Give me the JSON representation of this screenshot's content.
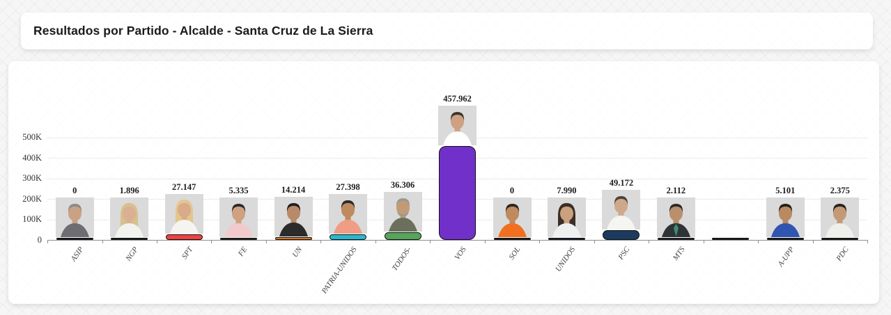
{
  "header": {
    "title": "Resultados por Partido - Alcalde - Santa Cruz de La Sierra"
  },
  "chart_data": {
    "type": "bar",
    "title": "Resultados por Partido - Alcalde - Santa Cruz de La Sierra",
    "xlabel": "",
    "ylabel": "",
    "ylim": [
      0,
      500000
    ],
    "ytick_labels": [
      "0",
      "100K",
      "200K",
      "300K",
      "400K",
      "500K"
    ],
    "grid": true,
    "legend": false,
    "xtick_rotation": -55,
    "categories": [
      "ASIP",
      "NGP",
      "SPT",
      "FE",
      "UN",
      "PATRIA-UNIDOS",
      "TODOS-",
      "VOS",
      "SOL",
      "UNIDOS",
      "PSC",
      "MTS",
      "",
      "A-UPP",
      "PDC"
    ],
    "values": [
      0,
      1896,
      27147,
      5335,
      14214,
      27398,
      36306,
      457962,
      0,
      7990,
      49172,
      2112,
      null,
      5101,
      2375
    ],
    "value_labels": [
      "0",
      "1.896",
      "27.147",
      "5.335",
      "14.214",
      "27.398",
      "36.306",
      "457.962",
      "0",
      "7.990",
      "49.172",
      "2.112",
      "",
      "5.101",
      "2.375"
    ],
    "bar_colors": [
      "#1f1f1f",
      "#1f1f1f",
      "#F04141",
      "#2b2b2b",
      "#D9781E",
      "#29B9CF",
      "#57A45B",
      "#7130C9",
      "#1f1f1f",
      "#21213d",
      "#1C3A5E",
      "#2b2b2b",
      "#1f1f1f",
      "#1f1f1f",
      "#1f1f1f"
    ],
    "photos": [
      {
        "skin": "#c9a284",
        "hair": "#8a8a8a",
        "shirt": "#6e6e72",
        "female": false,
        "beard": false,
        "tie": null
      },
      {
        "skin": "#d9b091",
        "hair": "#d8c08e",
        "shirt": "#f2f2ef",
        "female": true,
        "beard": false,
        "tie": null
      },
      {
        "skin": "#d9ab8a",
        "hair": "#e3c68f",
        "shirt": "#f5f4f0",
        "female": true,
        "beard": false,
        "tie": null
      },
      {
        "skin": "#cfa181",
        "hair": "#2a2a2a",
        "shirt": "#f2c9cd",
        "female": false,
        "beard": false,
        "tie": null
      },
      {
        "skin": "#b98a67",
        "hair": "#1f1f1f",
        "shirt": "#2b2b2b",
        "female": false,
        "beard": false,
        "tie": null
      },
      {
        "skin": "#c08a5f",
        "hair": "#2c2c2c",
        "shirt": "#f09d86",
        "female": false,
        "beard": false,
        "tie": null
      },
      {
        "skin": "#c49a76",
        "hair": "#9a9a94",
        "shirt": "#6b705c",
        "female": false,
        "beard": true,
        "tie": null
      },
      {
        "skin": "#cfa183",
        "hair": "#3c3430",
        "shirt": "#ffffff",
        "female": false,
        "beard": false,
        "tie": null
      },
      {
        "skin": "#c08a5f",
        "hair": "#2c2420",
        "shirt": "#f07020",
        "female": false,
        "beard": false,
        "tie": null
      },
      {
        "skin": "#caa07e",
        "hair": "#3a2e28",
        "shirt": "#eef0ef",
        "female": true,
        "beard": false,
        "tie": null
      },
      {
        "skin": "#cfa88a",
        "hair": "#4a443e",
        "shirt": "#f5f5f2",
        "female": false,
        "beard": false,
        "tie": null
      },
      {
        "skin": "#b9906b",
        "hair": "#2e2a26",
        "shirt": "#2e3338",
        "female": false,
        "beard": false,
        "tie": "#3f8f6f"
      },
      null,
      {
        "skin": "#b98a62",
        "hair": "#241f1b",
        "shirt": "#2f55b0",
        "female": false,
        "beard": false,
        "tie": null
      },
      {
        "skin": "#c49a76",
        "hair": "#2a241f",
        "shirt": "#efefec",
        "female": false,
        "beard": false,
        "tie": null
      }
    ]
  }
}
